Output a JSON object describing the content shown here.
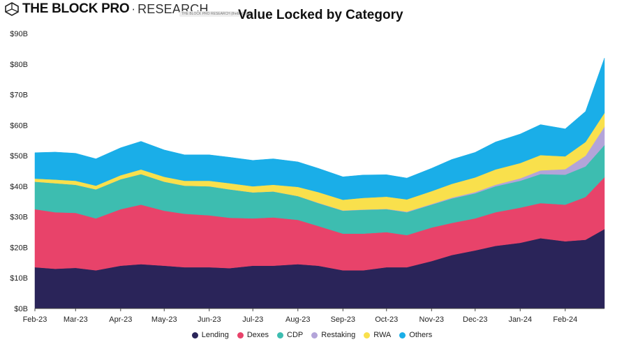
{
  "header": {
    "brand_name": "THE BLOCK PRO",
    "brand_separator": "·",
    "brand_sub": "RESEARCH",
    "brand_tag": "THE BLOCK PRO RESEARCH (theblock.pro)"
  },
  "chart_data": {
    "type": "area",
    "stacked": true,
    "title": "Value Locked by Category",
    "xlabel": "",
    "ylabel": "",
    "ylim": [
      0,
      90
    ],
    "y_ticks": [
      0,
      10,
      20,
      30,
      40,
      50,
      60,
      70,
      80,
      90
    ],
    "y_tick_labels": [
      "$0B",
      "$10B",
      "$20B",
      "$30B",
      "$40B",
      "$50B",
      "$60B",
      "$70B",
      "$80B",
      "$90B"
    ],
    "x_tick_labels": [
      "Feb-23",
      "Mar-23",
      "Apr-23",
      "May-23",
      "Jun-23",
      "Jul-23",
      "Aug-23",
      "Sep-23",
      "Oct-23",
      "Nov-23",
      "Dec-23",
      "Jan-24",
      "Feb-24"
    ],
    "grid": false,
    "legend_position": "bottom",
    "x": [
      "2023-02-01",
      "2023-02-15",
      "2023-03-01",
      "2023-03-15",
      "2023-04-01",
      "2023-04-15",
      "2023-05-01",
      "2023-05-15",
      "2023-06-01",
      "2023-06-15",
      "2023-07-01",
      "2023-07-15",
      "2023-08-01",
      "2023-08-15",
      "2023-09-01",
      "2023-09-15",
      "2023-10-01",
      "2023-10-15",
      "2023-11-01",
      "2023-11-15",
      "2023-12-01",
      "2023-12-15",
      "2024-01-01",
      "2024-01-15",
      "2024-02-01",
      "2024-02-15",
      "2024-02-28"
    ],
    "series": [
      {
        "name": "Lending",
        "color": "#2a2459",
        "values": [
          13.5,
          13,
          13.3,
          12.5,
          14,
          14.5,
          14,
          13.5,
          13.5,
          13.2,
          14,
          14,
          14.5,
          14,
          12.5,
          12.5,
          13.5,
          13.5,
          15.5,
          17.5,
          19,
          20.5,
          21.5,
          23,
          22,
          22.5,
          26
        ]
      },
      {
        "name": "Dexes",
        "color": "#e8436a",
        "values": [
          19,
          18.5,
          18,
          17,
          18.5,
          19.5,
          18,
          17.5,
          17,
          16.5,
          15.5,
          15.8,
          14.5,
          13,
          12,
          12,
          11.5,
          10.5,
          11,
          10.5,
          10.5,
          11,
          11.5,
          11.5,
          12,
          14,
          17
        ]
      },
      {
        "name": "CDP",
        "color": "#3dbdb0",
        "values": [
          9,
          9.5,
          9.2,
          9.5,
          9.8,
          10,
          9.5,
          9.2,
          9.5,
          9.3,
          8.5,
          8.5,
          7.8,
          7.5,
          7.5,
          7.8,
          7.5,
          7.5,
          7.5,
          8,
          8.2,
          8.5,
          8.8,
          9.5,
          9.8,
          10,
          10.5
        ]
      },
      {
        "name": "Restaking",
        "color": "#b3a4d9",
        "values": [
          0,
          0,
          0,
          0,
          0,
          0,
          0,
          0,
          0,
          0,
          0,
          0,
          0,
          0.1,
          0.1,
          0.1,
          0.1,
          0.2,
          0.2,
          0.3,
          0.4,
          0.5,
          0.8,
          1.2,
          1.8,
          3.5,
          6
        ]
      },
      {
        "name": "RWA",
        "color": "#f9e04c",
        "values": [
          1,
          1.2,
          1.3,
          1.2,
          1.3,
          1.5,
          1.6,
          1.6,
          1.8,
          2,
          2,
          2.2,
          3,
          3.5,
          3.5,
          3.8,
          4,
          4,
          4.2,
          4.5,
          4.8,
          5,
          5,
          5,
          4.2,
          4.5,
          4.5
        ]
      },
      {
        "name": "Others",
        "color": "#1aaee8",
        "values": [
          8.5,
          9,
          9,
          8.8,
          9,
          9.2,
          8.8,
          8.5,
          8.5,
          8.5,
          8.5,
          8.5,
          8.2,
          7.8,
          7.5,
          7.5,
          7.2,
          7,
          7.5,
          8,
          8.2,
          9,
          9.5,
          10,
          9,
          10,
          18
        ]
      }
    ]
  }
}
